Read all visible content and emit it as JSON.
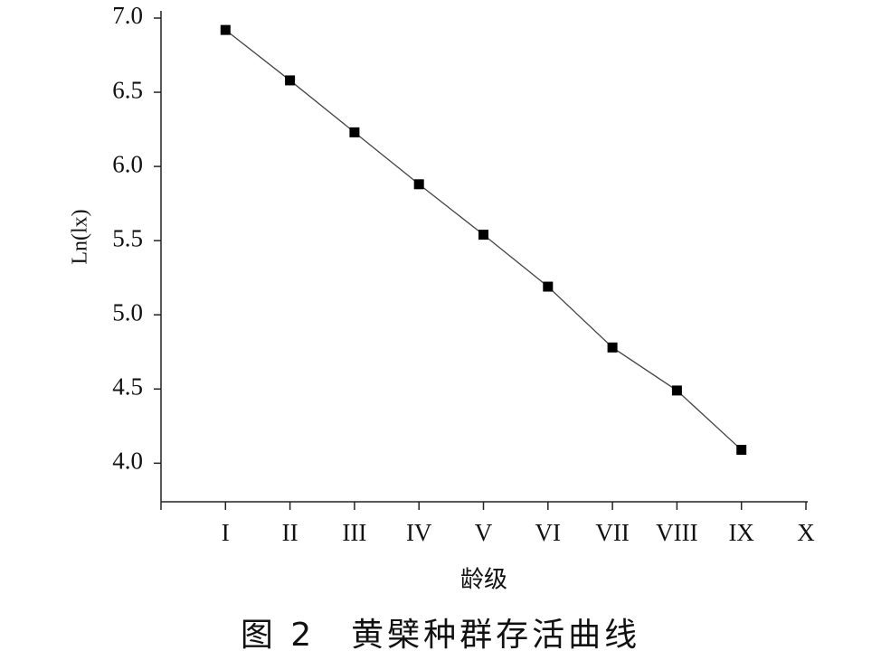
{
  "chart_data": {
    "type": "line",
    "title": "图 2　黄檗种群存活曲线",
    "x_label": "龄级",
    "y_label": "Ln(lx)",
    "categories": [
      "I",
      "II",
      "III",
      "IV",
      "V",
      "VI",
      "VII",
      "VIII",
      "IX",
      "X"
    ],
    "values": [
      6.92,
      6.58,
      6.23,
      5.88,
      5.54,
      5.19,
      4.78,
      4.49,
      4.09,
      null
    ],
    "color": "#000000",
    "ylim": [
      3.74,
      7.0
    ],
    "yticks": [
      {
        "value": 4,
        "label": "4.0"
      },
      4.5,
      {
        "value": 5,
        "label": "5.0"
      },
      5.5,
      {
        "value": 6,
        "label": "6.0"
      },
      6.5,
      {
        "value": 7,
        "label": "7.0"
      }
    ],
    "grid": false
  }
}
